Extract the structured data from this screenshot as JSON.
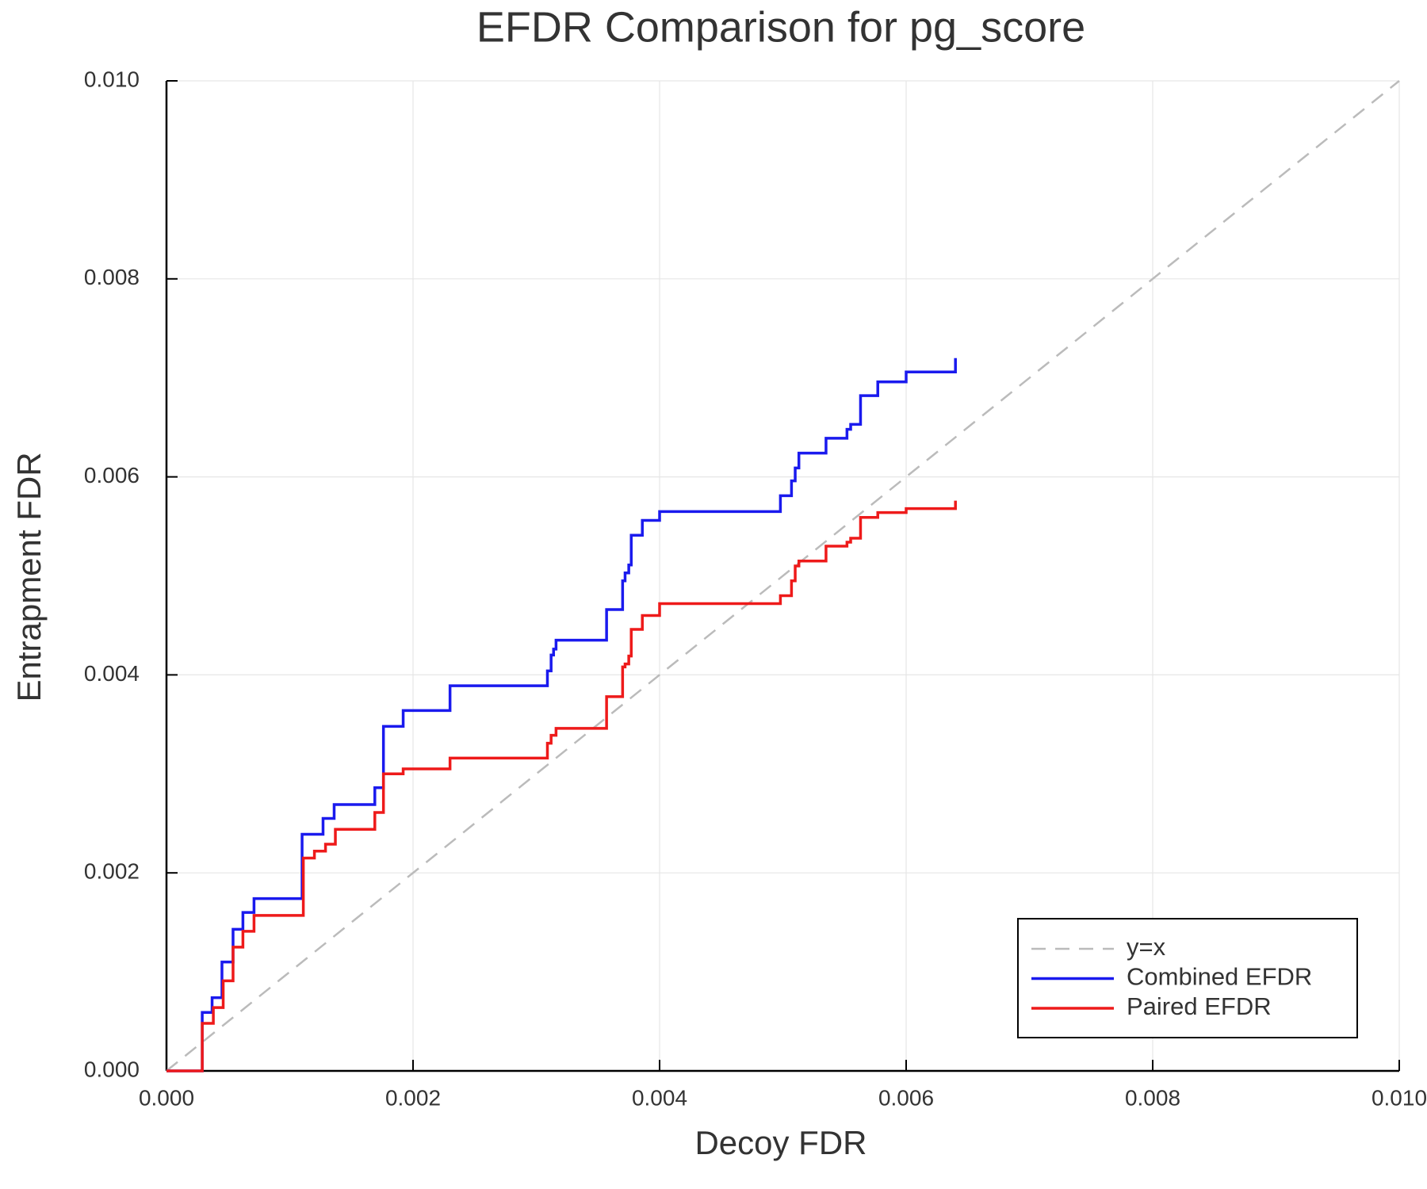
{
  "chart_data": {
    "type": "line",
    "title": "EFDR Comparison for pg_score",
    "x_label": "Decoy FDR",
    "y_label": "Entrapment FDR",
    "xlim": [
      0,
      0.01
    ],
    "ylim": [
      0,
      0.01
    ],
    "xticks": [
      {
        "value": 0,
        "label": "0.000"
      },
      {
        "value": 0.002,
        "label": "0.002"
      },
      {
        "value": 0.004,
        "label": "0.004"
      },
      {
        "value": 0.006,
        "label": "0.006"
      },
      {
        "value": 0.008,
        "label": "0.008"
      },
      {
        "value": 0.01,
        "label": "0.010"
      }
    ],
    "yticks": [
      {
        "value": 0,
        "label": "0.000"
      },
      {
        "value": 0.002,
        "label": "0.002"
      },
      {
        "value": 0.004,
        "label": "0.004"
      },
      {
        "value": 0.006,
        "label": "0.006"
      },
      {
        "value": 0.008,
        "label": "0.008"
      },
      {
        "value": 0.01,
        "label": "0.010"
      }
    ],
    "grid": true,
    "legend_position": "lower right",
    "series": [
      {
        "name": "y=x",
        "color": "#bbbbbb",
        "dashed": true,
        "x": [
          0,
          0.01
        ],
        "values": [
          0,
          0.01
        ]
      },
      {
        "name": "Combined EFDR",
        "color": "#1a1aee",
        "dashed": false,
        "x": [
          0,
          0.00029,
          0.00029,
          0.00037,
          0.00037,
          0.00045,
          0.00045,
          0.00054,
          0.00054,
          0.00062,
          0.00062,
          0.00071,
          0.00071,
          0.0011,
          0.0011,
          0.00127,
          0.00127,
          0.00136,
          0.00136,
          0.00169,
          0.00169,
          0.00176,
          0.00176,
          0.00192,
          0.00192,
          0.0023,
          0.0023,
          0.00309,
          0.00309,
          0.00312,
          0.00312,
          0.00314,
          0.00314,
          0.00316,
          0.00316,
          0.00357,
          0.00357,
          0.0037,
          0.0037,
          0.00372,
          0.00372,
          0.00375,
          0.00375,
          0.00377,
          0.00377,
          0.00386,
          0.00386,
          0.004,
          0.004,
          0.00498,
          0.00498,
          0.00507,
          0.00507,
          0.0051,
          0.0051,
          0.00513,
          0.00513,
          0.00535,
          0.00535,
          0.00552,
          0.00552,
          0.00555,
          0.00555,
          0.00563,
          0.00563,
          0.00577,
          0.00577,
          0.006,
          0.006,
          0.0064,
          0.0064
        ],
        "values": [
          0,
          0,
          0.00059,
          0.00059,
          0.00074,
          0.00074,
          0.0011,
          0.0011,
          0.00143,
          0.00143,
          0.0016,
          0.0016,
          0.00174,
          0.00174,
          0.00239,
          0.00239,
          0.00255,
          0.00255,
          0.00269,
          0.00269,
          0.00286,
          0.00286,
          0.00348,
          0.00348,
          0.00364,
          0.00364,
          0.00389,
          0.00389,
          0.00404,
          0.00404,
          0.0042,
          0.0042,
          0.00426,
          0.00426,
          0.00435,
          0.00435,
          0.00466,
          0.00466,
          0.00495,
          0.00495,
          0.00503,
          0.00503,
          0.00511,
          0.00511,
          0.00541,
          0.00541,
          0.00556,
          0.00556,
          0.00565,
          0.00565,
          0.00581,
          0.00581,
          0.00596,
          0.00596,
          0.00609,
          0.00609,
          0.00624,
          0.00624,
          0.00639,
          0.00639,
          0.00648,
          0.00648,
          0.00653,
          0.00653,
          0.00682,
          0.00682,
          0.00696,
          0.00696,
          0.00706,
          0.00706,
          0.0072
        ]
      },
      {
        "name": "Paired EFDR",
        "color": "#ee1a1a",
        "dashed": false,
        "x": [
          0,
          0.00029,
          0.00029,
          0.00038,
          0.00038,
          0.00046,
          0.00046,
          0.00054,
          0.00054,
          0.00062,
          0.00062,
          0.00071,
          0.00071,
          0.00111,
          0.00111,
          0.0012,
          0.0012,
          0.00129,
          0.00129,
          0.00137,
          0.00137,
          0.00169,
          0.00169,
          0.00176,
          0.00176,
          0.00192,
          0.00192,
          0.0023,
          0.0023,
          0.00309,
          0.00309,
          0.00312,
          0.00312,
          0.00316,
          0.00316,
          0.00357,
          0.00357,
          0.0037,
          0.0037,
          0.00372,
          0.00372,
          0.00375,
          0.00375,
          0.00377,
          0.00377,
          0.00386,
          0.00386,
          0.004,
          0.004,
          0.00498,
          0.00498,
          0.00507,
          0.00507,
          0.0051,
          0.0051,
          0.00513,
          0.00513,
          0.00535,
          0.00535,
          0.00552,
          0.00552,
          0.00555,
          0.00555,
          0.00563,
          0.00563,
          0.00577,
          0.00577,
          0.006,
          0.006,
          0.0064,
          0.0064
        ],
        "values": [
          0,
          0,
          0.00048,
          0.00048,
          0.00064,
          0.00064,
          0.00091,
          0.00091,
          0.00125,
          0.00125,
          0.00141,
          0.00141,
          0.00157,
          0.00157,
          0.00215,
          0.00215,
          0.00222,
          0.00222,
          0.00229,
          0.00229,
          0.00244,
          0.00244,
          0.00261,
          0.00261,
          0.003,
          0.003,
          0.00305,
          0.00305,
          0.00316,
          0.00316,
          0.00331,
          0.00331,
          0.00339,
          0.00339,
          0.00346,
          0.00346,
          0.00378,
          0.00378,
          0.00408,
          0.00408,
          0.00411,
          0.00411,
          0.00419,
          0.00419,
          0.00446,
          0.00446,
          0.0046,
          0.0046,
          0.00472,
          0.00472,
          0.0048,
          0.0048,
          0.00495,
          0.00495,
          0.0051,
          0.0051,
          0.00515,
          0.00515,
          0.0053,
          0.0053,
          0.00534,
          0.00534,
          0.00538,
          0.00538,
          0.00559,
          0.00559,
          0.00564,
          0.00564,
          0.00568,
          0.00568,
          0.00576
        ]
      }
    ]
  }
}
